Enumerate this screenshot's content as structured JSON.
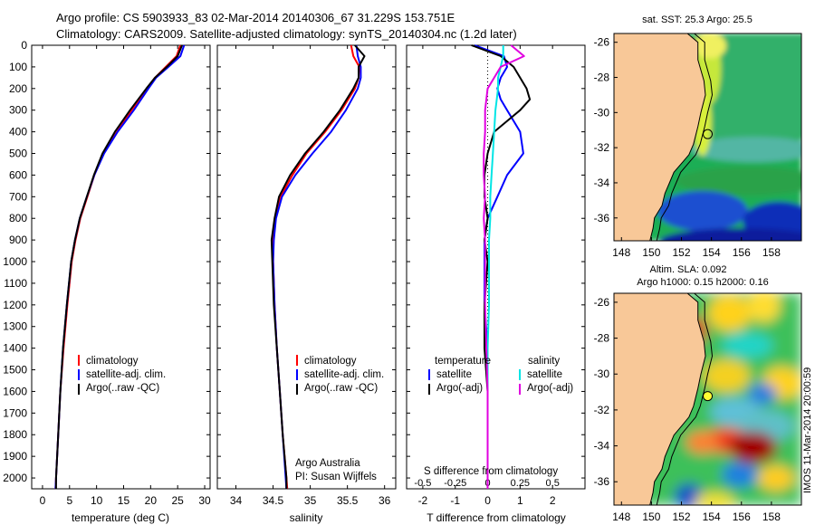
{
  "title": {
    "line1": "Argo profile: CS 5903933_83 02-Mar-2014 20140306_67 31.229S 153.751E",
    "line2": "Climatology: CARS2009. Satellite-adjusted climatology: synTS_20140304.nc (1.2d later)"
  },
  "colors": {
    "climatology": "#ff0000",
    "satellite": "#0000ff",
    "argo": "#000000",
    "sal_satellite": "#00e5e5",
    "sal_argo": "#e000e0",
    "land": "#f8c898"
  },
  "chart_data": [
    {
      "type": "line",
      "panel": "temperature",
      "xlabel": "temperature (deg C)",
      "ylabel": "",
      "xlim": [
        -2,
        31
      ],
      "ylim": [
        2050,
        0
      ],
      "xticks": [
        0,
        5,
        10,
        15,
        20,
        25,
        30
      ],
      "yticks": [
        0,
        100,
        200,
        300,
        400,
        500,
        600,
        700,
        800,
        900,
        1000,
        1100,
        1200,
        1300,
        1400,
        1500,
        1600,
        1700,
        1800,
        1900,
        2000
      ],
      "depth": [
        0,
        50,
        100,
        150,
        200,
        300,
        400,
        500,
        600,
        700,
        800,
        900,
        1000,
        1200,
        1400,
        1600,
        1800,
        2000,
        2050
      ],
      "series": [
        {
          "name": "climatology",
          "values": [
            25.5,
            24.8,
            22.8,
            20.8,
            19.3,
            16.5,
            13.8,
            11.3,
            9.6,
            8.3,
            7.0,
            6.1,
            5.4,
            4.6,
            3.9,
            3.3,
            2.9,
            2.5,
            2.4
          ]
        },
        {
          "name": "satellite-adj. clim.",
          "values": [
            26.2,
            25.5,
            23.3,
            21.0,
            19.6,
            16.9,
            13.9,
            11.4,
            9.6,
            8.2,
            6.9,
            6.0,
            5.3,
            4.5,
            3.8,
            3.3,
            2.9,
            2.5,
            2.4
          ]
        },
        {
          "name": "Argo(..raw -QC)",
          "values": [
            25.8,
            25.0,
            23.0,
            20.8,
            19.2,
            16.2,
            13.4,
            11.1,
            9.5,
            8.2,
            6.9,
            6.0,
            5.3,
            4.5,
            3.8,
            3.3,
            2.9,
            2.5,
            2.5
          ]
        }
      ],
      "legend": [
        "climatology",
        "satellite-adj. clim.",
        "Argo(..raw -QC)"
      ]
    },
    {
      "type": "line",
      "panel": "salinity",
      "xlabel": "salinity",
      "xlim": [
        33.75,
        36.15
      ],
      "ylim": [
        2050,
        0
      ],
      "xticks": [
        34,
        34.5,
        35,
        35.5,
        36
      ],
      "depth": [
        0,
        50,
        100,
        150,
        200,
        300,
        400,
        500,
        600,
        700,
        800,
        900,
        1000,
        1200,
        1400,
        1600,
        1800,
        2000,
        2050
      ],
      "series": [
        {
          "name": "climatology",
          "values": [
            35.55,
            35.58,
            35.66,
            35.65,
            35.6,
            35.42,
            35.2,
            34.95,
            34.76,
            34.6,
            34.53,
            34.5,
            34.5,
            34.52,
            34.55,
            34.59,
            34.63,
            34.68,
            34.69
          ]
        },
        {
          "name": "satellite-adj. clim.",
          "values": [
            35.62,
            35.64,
            35.68,
            35.68,
            35.64,
            35.48,
            35.28,
            35.03,
            34.8,
            34.62,
            34.54,
            34.51,
            34.5,
            34.52,
            34.55,
            34.59,
            34.63,
            34.67,
            34.68
          ]
        },
        {
          "name": "Argo(..raw -QC)",
          "values": [
            35.6,
            35.73,
            35.65,
            35.65,
            35.58,
            35.4,
            35.18,
            34.93,
            34.73,
            34.58,
            34.52,
            34.48,
            34.49,
            34.51,
            34.55,
            34.59,
            34.63,
            34.68,
            34.68
          ]
        }
      ],
      "legend": [
        "climatology",
        "satellite-adj. clim.",
        "Argo(..raw -QC)"
      ],
      "annotation": [
        "Argo Australia",
        "PI: Susan Wijffels"
      ]
    },
    {
      "type": "line",
      "panel": "difference",
      "xlabel": "T difference from climatology",
      "xlabel2": "S difference from climatology",
      "xlim": [
        -2.5,
        3
      ],
      "ylim": [
        2050,
        0
      ],
      "xticks": [
        -2,
        -1,
        0,
        1,
        2
      ],
      "xticklabels2": [
        [
          -0.5,
          "-0.5"
        ],
        [
          -0.25,
          "-0.25"
        ],
        [
          0,
          "0"
        ],
        [
          0.25,
          "0.25"
        ],
        [
          0.5,
          "0.5"
        ]
      ],
      "depth": [
        0,
        50,
        100,
        150,
        200,
        250,
        300,
        400,
        500,
        600,
        700,
        800,
        900,
        1000,
        1200,
        1400,
        1600,
        1800,
        2000,
        2050
      ],
      "series": [
        {
          "name": "temperature satellite",
          "values": [
            -0.4,
            0.5,
            0.6,
            0.4,
            0.3,
            0.4,
            0.6,
            1.0,
            1.1,
            0.6,
            0.3,
            0.0,
            -0.1,
            -0.1,
            -0.1,
            0.0,
            0.0,
            0.0,
            0.0,
            0.0
          ]
        },
        {
          "name": "temperature Argo(-adj)",
          "values": [
            -0.5,
            0.4,
            0.8,
            1.0,
            1.2,
            1.3,
            1.0,
            0.2,
            0.0,
            -0.1,
            -0.1,
            0.0,
            -0.1,
            0.0,
            -0.1,
            -0.1,
            0.0,
            0.0,
            0.0,
            0.0
          ]
        },
        {
          "name": "salinity satellite",
          "values": [
            0.12,
            0.12,
            0.1,
            0.08,
            0.08,
            0.07,
            0.06,
            0.05,
            0.04,
            0.03,
            0.02,
            0.02,
            0.01,
            0.01,
            0.01,
            0.0,
            0.0,
            0.0,
            0.0,
            0.0
          ]
        },
        {
          "name": "salinity Argo(-adj)",
          "values": [
            0.18,
            0.28,
            0.1,
            0.05,
            0.0,
            -0.01,
            -0.02,
            -0.02,
            -0.03,
            -0.03,
            -0.02,
            -0.03,
            -0.02,
            -0.02,
            -0.02,
            -0.01,
            0.0,
            0.0,
            0.0,
            0.0
          ]
        }
      ],
      "legend_temperature_heading": "temperature",
      "legend_salinity_heading": "salinity",
      "legend_temperature": [
        "satellite",
        "Argo(-adj)"
      ],
      "legend_salinity": [
        "satellite",
        "Argo(-adj)"
      ]
    },
    {
      "type": "heatmap",
      "panel": "sst_map",
      "title": "sat. SST: 25.3 Argo: 25.5",
      "xlim": [
        147.5,
        160
      ],
      "ylim": [
        -37.3,
        -25.5
      ],
      "xticks": [
        148,
        150,
        152,
        154,
        156,
        158
      ],
      "yticks": [
        -26,
        -28,
        -30,
        -32,
        -34,
        -36
      ],
      "marker": {
        "lon": 153.751,
        "lat": -31.229
      }
    },
    {
      "type": "heatmap",
      "panel": "sla_map",
      "title": "Altim. SLA: 0.092",
      "subtitle": "Argo h1000: 0.15 h2000: 0.16",
      "xlim": [
        147.5,
        160
      ],
      "ylim": [
        -37.3,
        -25.5
      ],
      "xticks": [
        148,
        150,
        152,
        154,
        156,
        158
      ],
      "yticks": [
        -26,
        -28,
        -30,
        -32,
        -34,
        -36
      ],
      "marker": {
        "lon": 153.751,
        "lat": -31.229
      }
    }
  ],
  "credit": "IMOS 11-Mar-2014 20:00:59"
}
